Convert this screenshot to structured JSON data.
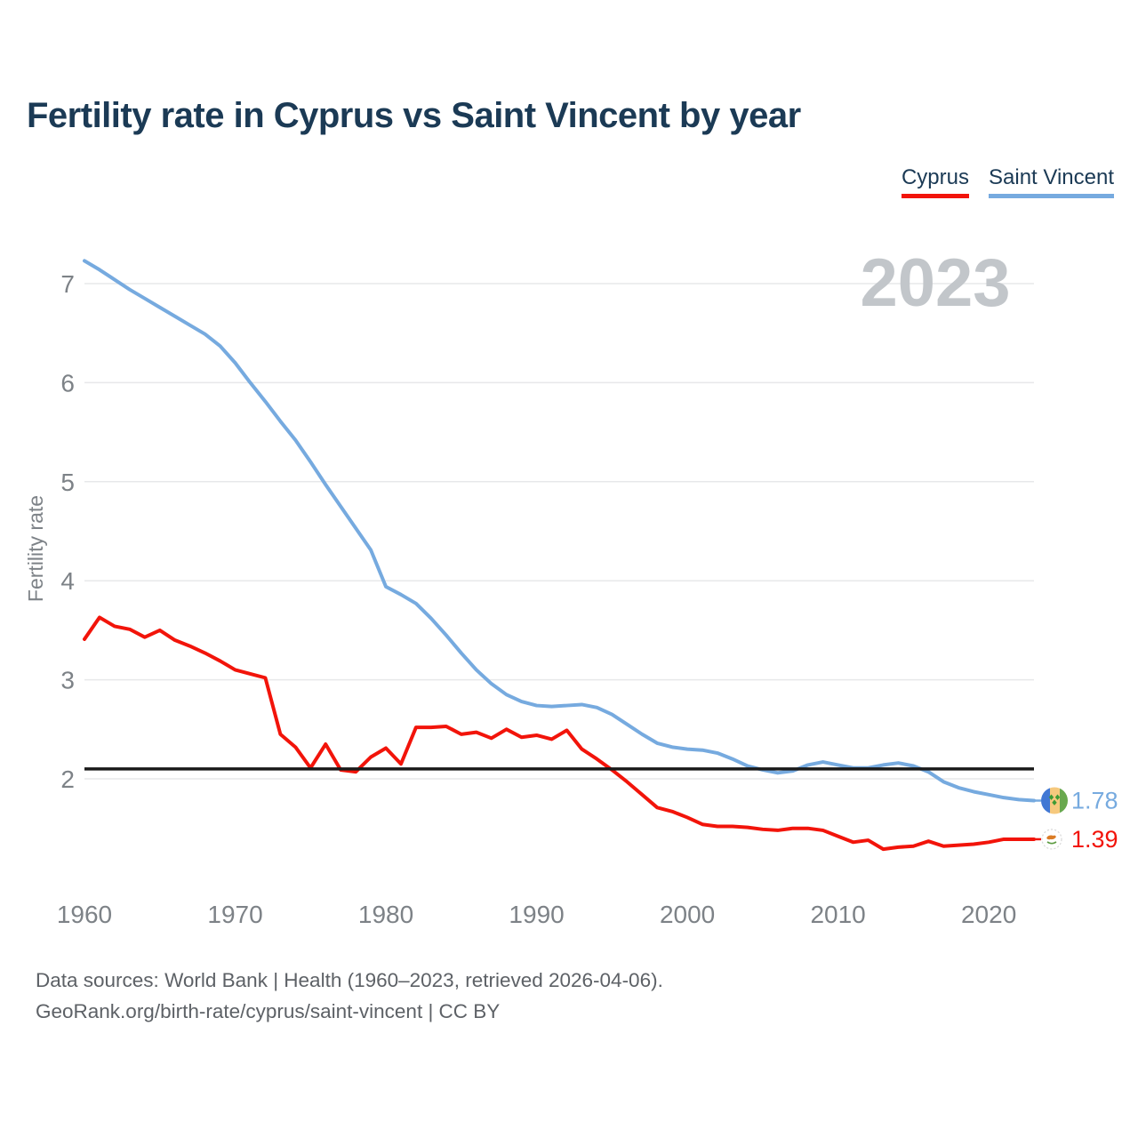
{
  "header": {
    "title": "Fertility rate in Cyprus vs Saint Vincent by year"
  },
  "legend": [
    {
      "label": "Cyprus",
      "color": "#f2140a"
    },
    {
      "label": "Saint Vincent",
      "color": "#76aadf"
    }
  ],
  "watermark": "2023",
  "chart_data": {
    "type": "line",
    "title": "Fertility rate in Cyprus vs Saint Vincent by year",
    "xlabel": "",
    "ylabel": "Fertility rate",
    "xlim": [
      1960,
      2023
    ],
    "ylim": [
      1.2,
      7.3
    ],
    "x_ticks": [
      1960,
      1970,
      1980,
      1990,
      2000,
      2010,
      2020
    ],
    "y_ticks": [
      2,
      3,
      4,
      5,
      6,
      7
    ],
    "grid": true,
    "legend_position": "top-right",
    "reference_line": {
      "value": 2.1,
      "color": "#1a1a1a"
    },
    "x": [
      1960,
      1961,
      1962,
      1963,
      1964,
      1965,
      1966,
      1967,
      1968,
      1969,
      1970,
      1971,
      1972,
      1973,
      1974,
      1975,
      1976,
      1977,
      1978,
      1979,
      1980,
      1981,
      1982,
      1983,
      1984,
      1985,
      1986,
      1987,
      1988,
      1989,
      1990,
      1991,
      1992,
      1993,
      1994,
      1995,
      1996,
      1997,
      1998,
      1999,
      2000,
      2001,
      2002,
      2003,
      2004,
      2005,
      2006,
      2007,
      2008,
      2009,
      2010,
      2011,
      2012,
      2013,
      2014,
      2015,
      2016,
      2017,
      2018,
      2019,
      2020,
      2021,
      2022,
      2023
    ],
    "series": [
      {
        "name": "Cyprus",
        "color": "#f2140a",
        "end_label": "1.39",
        "values": [
          3.41,
          3.63,
          3.54,
          3.51,
          3.43,
          3.5,
          3.4,
          3.34,
          3.27,
          3.19,
          3.1,
          3.06,
          3.02,
          2.45,
          2.32,
          2.11,
          2.35,
          2.09,
          2.07,
          2.22,
          2.31,
          2.15,
          2.52,
          2.52,
          2.53,
          2.45,
          2.47,
          2.41,
          2.5,
          2.42,
          2.44,
          2.4,
          2.49,
          2.3,
          2.2,
          2.09,
          1.97,
          1.84,
          1.71,
          1.67,
          1.61,
          1.54,
          1.52,
          1.52,
          1.51,
          1.49,
          1.48,
          1.5,
          1.5,
          1.48,
          1.42,
          1.36,
          1.38,
          1.29,
          1.31,
          1.32,
          1.37,
          1.32,
          1.33,
          1.34,
          1.36,
          1.39,
          1.39,
          1.39
        ]
      },
      {
        "name": "Saint Vincent",
        "color": "#76aadf",
        "end_label": "1.78",
        "values": [
          7.23,
          7.14,
          7.04,
          6.94,
          6.85,
          6.76,
          6.67,
          6.58,
          6.49,
          6.37,
          6.2,
          6.0,
          5.81,
          5.61,
          5.42,
          5.2,
          4.97,
          4.75,
          4.53,
          4.31,
          3.94,
          3.86,
          3.77,
          3.62,
          3.45,
          3.27,
          3.1,
          2.96,
          2.85,
          2.78,
          2.74,
          2.73,
          2.74,
          2.75,
          2.72,
          2.65,
          2.55,
          2.45,
          2.36,
          2.32,
          2.3,
          2.29,
          2.26,
          2.2,
          2.13,
          2.09,
          2.06,
          2.08,
          2.14,
          2.17,
          2.14,
          2.11,
          2.11,
          2.14,
          2.16,
          2.13,
          2.07,
          1.97,
          1.91,
          1.87,
          1.84,
          1.81,
          1.79,
          1.78
        ]
      }
    ]
  },
  "footer": {
    "line1": "Data sources: World Bank | Health (1960–2023, retrieved 2026-04-06).",
    "line2": "GeoRank.org/birth-rate/cyprus/saint-vincent | CC BY"
  }
}
